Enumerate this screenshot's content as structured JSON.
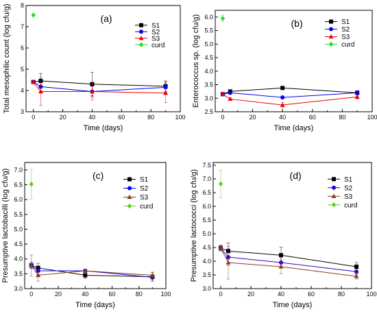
{
  "chart_data": [
    {
      "type": "line",
      "panel_label": "(a)",
      "xlabel": "Time (days)",
      "ylabel": "Total mesophilic count (log cfu/g)",
      "xlim": [
        -5,
        100
      ],
      "ylim": [
        3,
        8
      ],
      "xticks": [
        0,
        20,
        40,
        60,
        80,
        100
      ],
      "yticks": [
        3,
        4,
        5,
        6,
        7,
        8
      ],
      "xtick_labels": [
        "0",
        "20",
        "40",
        "60",
        "80",
        "100"
      ],
      "ytick_labels": [
        "3",
        "4",
        "5",
        "6",
        "7",
        "8"
      ],
      "legend_position": "top-right",
      "series": [
        {
          "name": "S1",
          "color": "#000000",
          "marker": "square",
          "x": [
            0,
            5,
            40,
            90
          ],
          "y": [
            4.4,
            4.45,
            4.3,
            4.2
          ],
          "err": [
            0.08,
            0.35,
            0.55,
            0.25
          ]
        },
        {
          "name": "S2",
          "color": "#0000ee",
          "marker": "circle",
          "x": [
            0,
            5,
            40,
            90
          ],
          "y": [
            4.4,
            4.18,
            3.95,
            4.15
          ],
          "err": [
            0.08,
            0.3,
            0.25,
            0.25
          ]
        },
        {
          "name": "S3",
          "color": "#ee0000",
          "marker": "triangle",
          "x": [
            0,
            5,
            40,
            90
          ],
          "y": [
            4.4,
            3.95,
            3.95,
            3.88
          ],
          "err": [
            0.08,
            0.65,
            0.4,
            0.45
          ]
        },
        {
          "name": "curd",
          "color": "#22dd22",
          "marker": "diamond",
          "x": [
            0
          ],
          "y": [
            7.55
          ],
          "err": [
            0
          ]
        }
      ]
    },
    {
      "type": "line",
      "panel_label": "(b)",
      "xlabel": "Time (days)",
      "ylabel": "Enterococcus sp. (log cfu/g)",
      "xlim": [
        -5,
        100
      ],
      "ylim": [
        2.5,
        6.25
      ],
      "xticks": [
        0,
        20,
        40,
        60,
        80,
        100
      ],
      "yticks": [
        2.5,
        3.0,
        3.5,
        4.0,
        4.5,
        5.0,
        5.5,
        6.0
      ],
      "xtick_labels": [
        "0",
        "20",
        "40",
        "60",
        "80",
        "100"
      ],
      "ytick_labels": [
        "2.5",
        "3.0",
        "3.5",
        "4.0",
        "4.5",
        "5.0",
        "5.5",
        "6.0"
      ],
      "legend_position": "top-right",
      "series": [
        {
          "name": "S1",
          "color": "#000000",
          "marker": "square",
          "x": [
            0,
            5,
            40,
            90
          ],
          "y": [
            3.15,
            3.25,
            3.38,
            3.2
          ],
          "err": [
            0.04,
            0.05,
            0.04,
            0.05
          ]
        },
        {
          "name": "S2",
          "color": "#0000ee",
          "marker": "circle",
          "x": [
            0,
            5,
            40,
            90
          ],
          "y": [
            3.15,
            3.2,
            3.03,
            3.2
          ],
          "err": [
            0.04,
            0.05,
            0.05,
            0.08
          ]
        },
        {
          "name": "S3",
          "color": "#ee0000",
          "marker": "triangle",
          "x": [
            0,
            5,
            40,
            90
          ],
          "y": [
            3.15,
            2.97,
            2.75,
            3.05
          ],
          "err": [
            0.04,
            0.05,
            0.1,
            0.08
          ]
        },
        {
          "name": "curd",
          "color": "#22dd22",
          "marker": "diamond",
          "x": [
            0
          ],
          "y": [
            5.95
          ],
          "err": [
            0.12
          ]
        }
      ]
    },
    {
      "type": "line",
      "panel_label": "(c)",
      "xlabel": "Time (days)",
      "ylabel": "Presumptive lactobacilli (log cfu/g)",
      "xlim": [
        -5,
        100
      ],
      "ylim": [
        3.0,
        7.25
      ],
      "xticks": [
        0,
        20,
        40,
        60,
        80,
        100
      ],
      "yticks": [
        3.0,
        3.5,
        4.0,
        4.5,
        5.0,
        5.5,
        6.0,
        6.5,
        7.0
      ],
      "xtick_labels": [
        "0",
        "20",
        "40",
        "60",
        "80",
        "100"
      ],
      "ytick_labels": [
        "3.0",
        "3.5",
        "4.0",
        "4.5",
        "5.0",
        "5.5",
        "6.0",
        "6.5",
        "7.0"
      ],
      "legend_position": "top-right",
      "series": [
        {
          "name": "S1",
          "color": "#000000",
          "marker": "square",
          "x": [
            0,
            5,
            40,
            90
          ],
          "y": [
            3.78,
            3.7,
            3.45,
            3.4
          ],
          "err": [
            0.1,
            0.15,
            0.1,
            0.15
          ]
        },
        {
          "name": "S2",
          "color": "#0000ee",
          "marker": "circle",
          "x": [
            0,
            5,
            40,
            90
          ],
          "y": [
            3.78,
            3.6,
            3.6,
            3.38
          ],
          "err": [
            0.1,
            0.12,
            0.06,
            0.08
          ]
        },
        {
          "name": "S3",
          "color": "#8b3a1a",
          "marker": "triangle",
          "x": [
            0,
            5,
            40,
            90
          ],
          "y": [
            3.78,
            3.45,
            3.6,
            3.45
          ],
          "err": [
            0.35,
            0.2,
            0.06,
            0.1
          ]
        },
        {
          "name": "curd",
          "color": "#66cc22",
          "marker": "diamond",
          "x": [
            0
          ],
          "y": [
            6.52
          ],
          "err": [
            0.5
          ]
        }
      ]
    },
    {
      "type": "line",
      "panel_label": "(d)",
      "xlabel": "Time (days)",
      "ylabel": "Presumptive lactococci (log cfu/g)",
      "xlim": [
        -5,
        100
      ],
      "ylim": [
        3.0,
        7.6
      ],
      "xticks": [
        0,
        20,
        40,
        60,
        80,
        100
      ],
      "yticks": [
        3.0,
        3.5,
        4.0,
        4.5,
        5.0,
        5.5,
        6.0,
        6.5,
        7.0,
        7.5
      ],
      "xtick_labels": [
        "0",
        "20",
        "40",
        "60",
        "80",
        "100"
      ],
      "ytick_labels": [
        "3.0",
        "3.5",
        "4.0",
        "4.5",
        "5.0",
        "5.5",
        "6.0",
        "6.5",
        "7.0",
        "7.5"
      ],
      "legend_position": "top-right",
      "series": [
        {
          "name": "S1",
          "color": "#000000",
          "marker": "square",
          "x": [
            0,
            5,
            40,
            90
          ],
          "y": [
            4.48,
            4.37,
            4.22,
            3.8
          ],
          "err": [
            0.1,
            0.3,
            0.3,
            0.15
          ]
        },
        {
          "name": "S2",
          "color": "#3300cc",
          "marker": "circle",
          "x": [
            0,
            5,
            40,
            90
          ],
          "y": [
            4.48,
            4.15,
            3.95,
            3.62
          ],
          "err": [
            0.1,
            0.3,
            0.2,
            0.1
          ]
        },
        {
          "name": "S3",
          "color": "#8b3a1a",
          "marker": "triangle",
          "x": [
            0,
            5,
            40,
            90
          ],
          "y": [
            4.48,
            3.95,
            3.8,
            3.45
          ],
          "err": [
            0.1,
            0.6,
            0.25,
            0.1
          ]
        },
        {
          "name": "curd",
          "color": "#66cc22",
          "marker": "diamond",
          "x": [
            0
          ],
          "y": [
            6.82
          ],
          "err": [
            0.5
          ]
        }
      ]
    }
  ]
}
